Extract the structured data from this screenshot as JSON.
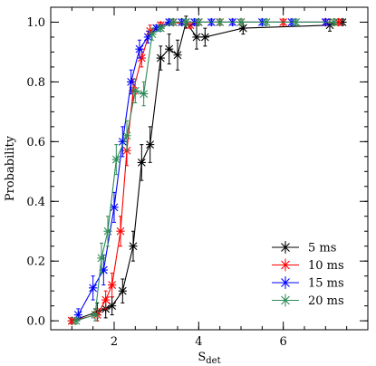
{
  "chart_data": {
    "type": "line",
    "xlabel": "S",
    "xlabel_sub": "det",
    "ylabel": "Probability",
    "xlim": [
      0.5,
      8.0
    ],
    "ylim": [
      -0.03,
      1.05
    ],
    "x_ticks": [
      2,
      4,
      6
    ],
    "x_tick_labels": [
      "2",
      "4",
      "6"
    ],
    "x_minor_step": 0.5,
    "y_ticks": [
      0.0,
      0.2,
      0.4,
      0.6,
      0.8,
      1.0
    ],
    "y_tick_labels": [
      "0.0",
      "0.2",
      "0.4",
      "0.6",
      "0.8",
      "1.0"
    ],
    "y_minor_step": 0.05,
    "legend_position": "bottom-right",
    "series": [
      {
        "name": "5 ms",
        "color": "#000000",
        "x": [
          1.0,
          1.6,
          1.8,
          1.95,
          2.2,
          2.45,
          2.65,
          2.85,
          3.1,
          3.3,
          3.5,
          3.7,
          3.95,
          4.15,
          5.05,
          7.1,
          7.4
        ],
        "y": [
          0.0,
          0.03,
          0.04,
          0.05,
          0.1,
          0.25,
          0.53,
          0.59,
          0.88,
          0.91,
          0.89,
          1.0,
          0.95,
          0.95,
          0.98,
          0.99,
          1.0
        ],
        "err": [
          0.01,
          0.03,
          0.03,
          0.03,
          0.04,
          0.05,
          0.06,
          0.06,
          0.04,
          0.05,
          0.05,
          0.02,
          0.04,
          0.03,
          0.02,
          0.02,
          0.01
        ]
      },
      {
        "name": "10 ms",
        "color": "#ff0000",
        "x": [
          1.0,
          1.6,
          1.8,
          1.95,
          2.15,
          2.3,
          2.45,
          2.65,
          2.85,
          3.1,
          3.4,
          3.8,
          4.0,
          4.5,
          5.0,
          6.0,
          7.0,
          7.3
        ],
        "y": [
          0.0,
          0.02,
          0.07,
          0.12,
          0.3,
          0.57,
          0.77,
          0.88,
          0.97,
          0.99,
          1.0,
          0.99,
          1.0,
          1.0,
          1.0,
          1.0,
          1.0,
          1.0
        ],
        "err": [
          0.01,
          0.02,
          0.03,
          0.04,
          0.05,
          0.05,
          0.04,
          0.03,
          0.02,
          0.01,
          0.01,
          0.01,
          0.01,
          0.01,
          0.01,
          0.01,
          0.01,
          0.01
        ]
      },
      {
        "name": "15 ms",
        "color": "#0000ff",
        "x": [
          1.15,
          1.5,
          1.75,
          2.0,
          2.2,
          2.4,
          2.6,
          2.8,
          3.0,
          3.3,
          3.6,
          3.9,
          4.3,
          4.8,
          5.5,
          6.2,
          7.0
        ],
        "y": [
          0.02,
          0.11,
          0.17,
          0.38,
          0.6,
          0.8,
          0.91,
          0.95,
          0.98,
          1.0,
          1.0,
          1.0,
          1.0,
          1.0,
          1.0,
          1.0,
          1.0
        ],
        "err": [
          0.02,
          0.04,
          0.05,
          0.05,
          0.05,
          0.04,
          0.03,
          0.02,
          0.01,
          0.01,
          0.01,
          0.01,
          0.01,
          0.01,
          0.01,
          0.01,
          0.01
        ]
      },
      {
        "name": "20 ms",
        "color": "#2e8b57",
        "x": [
          1.1,
          1.55,
          1.7,
          1.85,
          2.05,
          2.3,
          2.5,
          2.7,
          2.9,
          3.1,
          3.4,
          3.7,
          4.0,
          4.5,
          5.0,
          5.6,
          6.3,
          7.2
        ],
        "y": [
          0.0,
          0.02,
          0.21,
          0.3,
          0.54,
          0.62,
          0.77,
          0.76,
          0.96,
          0.98,
          1.0,
          1.0,
          1.0,
          1.0,
          1.0,
          1.0,
          1.0,
          1.0
        ],
        "err": [
          0.01,
          0.02,
          0.05,
          0.05,
          0.05,
          0.05,
          0.04,
          0.04,
          0.02,
          0.01,
          0.01,
          0.01,
          0.01,
          0.01,
          0.01,
          0.01,
          0.01,
          0.01
        ]
      }
    ]
  }
}
